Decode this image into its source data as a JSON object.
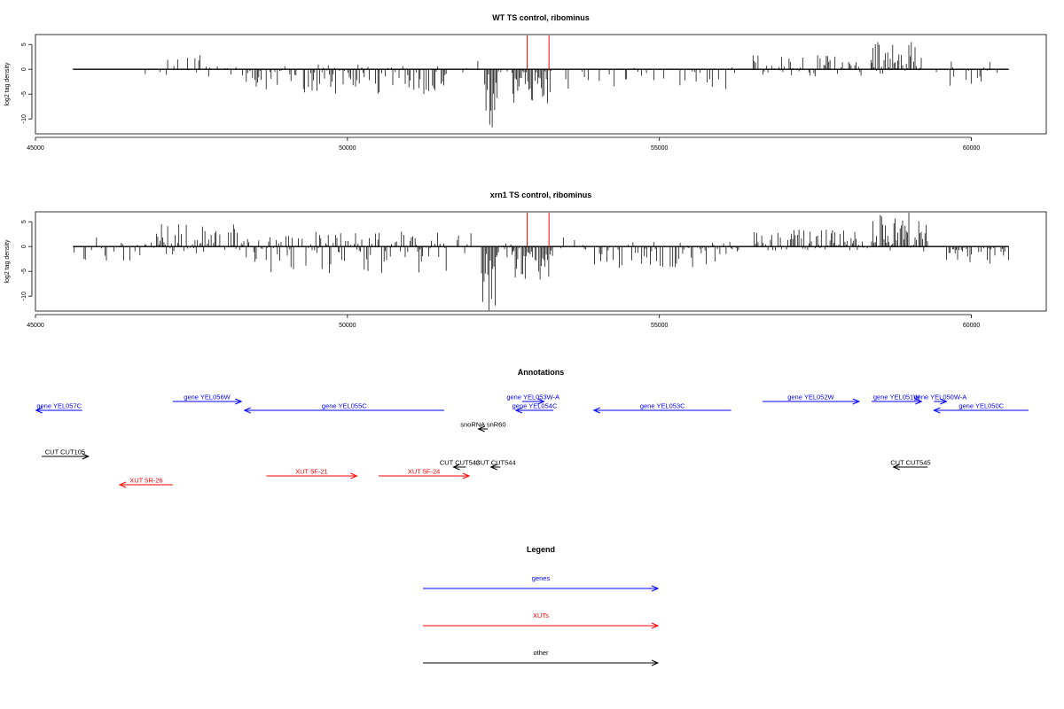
{
  "chart_data": [
    {
      "type": "bar",
      "title": "WT TS control, ribominus",
      "xlabel": "",
      "ylabel": "log2 tag density",
      "xlim": [
        45000,
        61200
      ],
      "ylim": [
        -13,
        7
      ],
      "xticks": [
        45000,
        50000,
        55000,
        60000
      ],
      "xtick_labels": [
        "45000",
        "50000",
        "55000",
        "60000"
      ],
      "yticks": [
        5,
        0,
        -5,
        -10
      ],
      "ytick_labels": [
        "5",
        "0",
        "-5",
        "-10"
      ],
      "baseline_range": [
        45600,
        60600
      ],
      "markers": [
        52880,
        53230
      ],
      "marker_color": "#ff0000",
      "regions": [
        {
          "x": [
            45620,
            45700
          ],
          "y": [
            -2.0,
            0.5
          ],
          "density": 0.2
        },
        {
          "x": [
            45820,
            45900
          ],
          "y": [
            -3.0,
            0.0
          ],
          "density": 0.2
        },
        {
          "x": [
            46700,
            46760
          ],
          "y": [
            -2.0,
            0.5
          ],
          "density": 0.3
        },
        {
          "x": [
            46900,
            48300
          ],
          "y": [
            -1.5,
            3.0
          ],
          "density": 0.35
        },
        {
          "x": [
            48300,
            51600
          ],
          "y": [
            -5.0,
            1.0
          ],
          "density": 0.6
        },
        {
          "x": [
            51850,
            51950
          ],
          "y": [
            -1.0,
            3.0
          ],
          "density": 0.3
        },
        {
          "x": [
            52050,
            52150
          ],
          "y": [
            -1.0,
            2.0
          ],
          "density": 0.3
        },
        {
          "x": [
            52200,
            52400
          ],
          "y": [
            -12.5,
            0.0
          ],
          "density": 1.0
        },
        {
          "x": [
            52400,
            52650
          ],
          "y": [
            -2.0,
            0.5
          ],
          "density": 0.4
        },
        {
          "x": [
            52650,
            53300
          ],
          "y": [
            -7.0,
            0.0
          ],
          "density": 1.0
        },
        {
          "x": [
            53500,
            56300
          ],
          "y": [
            -4.0,
            1.0
          ],
          "density": 0.25
        },
        {
          "x": [
            56500,
            58400
          ],
          "y": [
            -1.5,
            3.0
          ],
          "density": 0.55
        },
        {
          "x": [
            58400,
            59200
          ],
          "y": [
            -1.0,
            5.5
          ],
          "density": 0.95
        },
        {
          "x": [
            59400,
            60600
          ],
          "y": [
            -3.5,
            2.0
          ],
          "density": 0.4
        }
      ]
    },
    {
      "type": "bar",
      "title": "xrn1 TS control, ribominus",
      "xlabel": "",
      "ylabel": "log2 tag density",
      "xlim": [
        45000,
        61200
      ],
      "ylim": [
        -13,
        7
      ],
      "xticks": [
        45000,
        50000,
        55000,
        60000
      ],
      "xtick_labels": [
        "45000",
        "50000",
        "55000",
        "60000"
      ],
      "yticks": [
        5,
        0,
        -5,
        -10
      ],
      "ytick_labels": [
        "5",
        "0",
        "-5",
        "-10"
      ],
      "baseline_range": [
        45600,
        60600
      ],
      "markers": [
        52880,
        53230
      ],
      "marker_color": "#ff0000",
      "regions": [
        {
          "x": [
            45600,
            46900
          ],
          "y": [
            -3.0,
            2.0
          ],
          "density": 0.3
        },
        {
          "x": [
            46900,
            48300
          ],
          "y": [
            -2.0,
            4.5
          ],
          "density": 0.9
        },
        {
          "x": [
            48300,
            51600
          ],
          "y": [
            -5.5,
            3.0
          ],
          "density": 0.8
        },
        {
          "x": [
            51700,
            52100
          ],
          "y": [
            -2.0,
            3.0
          ],
          "density": 0.4
        },
        {
          "x": [
            52150,
            52400
          ],
          "y": [
            -13.0,
            0.0
          ],
          "density": 1.0
        },
        {
          "x": [
            52400,
            52650
          ],
          "y": [
            -3.0,
            1.0
          ],
          "density": 0.5
        },
        {
          "x": [
            52650,
            53300
          ],
          "y": [
            -7.0,
            0.0
          ],
          "density": 1.0
        },
        {
          "x": [
            53300,
            53800
          ],
          "y": [
            -1.0,
            2.0
          ],
          "density": 0.3
        },
        {
          "x": [
            53800,
            56300
          ],
          "y": [
            -4.5,
            1.0
          ],
          "density": 0.55
        },
        {
          "x": [
            56500,
            58400
          ],
          "y": [
            -1.0,
            3.5
          ],
          "density": 0.85
        },
        {
          "x": [
            58400,
            59300
          ],
          "y": [
            -1.0,
            7.0
          ],
          "density": 1.0
        },
        {
          "x": [
            59600,
            60600
          ],
          "y": [
            -3.5,
            0.0
          ],
          "density": 0.7
        }
      ]
    }
  ],
  "annotations": {
    "title": "Annotations",
    "features": [
      {
        "label": "gene YEL057C",
        "start": 45010,
        "end": 45750,
        "row": 1,
        "kind": "gene",
        "strand": "-"
      },
      {
        "label": "gene YEL056W",
        "start": 47200,
        "end": 48300,
        "row": 0,
        "kind": "gene",
        "strand": "+"
      },
      {
        "label": "gene YEL055C",
        "start": 48350,
        "end": 51550,
        "row": 1,
        "kind": "gene",
        "strand": "-"
      },
      {
        "label": "gene YEL053W-A",
        "start": 52800,
        "end": 53150,
        "row": 0,
        "kind": "gene",
        "strand": "+"
      },
      {
        "label": "gene YEL054C",
        "start": 52700,
        "end": 53300,
        "row": 1,
        "kind": "gene",
        "strand": "-"
      },
      {
        "label": "gene YEL053C",
        "start": 53950,
        "end": 56150,
        "row": 1,
        "kind": "gene",
        "strand": "-"
      },
      {
        "label": "gene YEL052W",
        "start": 56650,
        "end": 58200,
        "row": 0,
        "kind": "gene",
        "strand": "+"
      },
      {
        "label": "gene YEL051W",
        "start": 58400,
        "end": 59200,
        "row": 0,
        "kind": "gene",
        "strand": "+"
      },
      {
        "label": "gene YEL050W-A",
        "start": 59400,
        "end": 59600,
        "row": 0,
        "kind": "gene",
        "strand": "+"
      },
      {
        "label": "gene YEL050C",
        "start": 59400,
        "end": 61450,
        "row": 1,
        "kind": "gene",
        "strand": "-"
      },
      {
        "label": "snoRNA snR60",
        "start": 52100,
        "end": 52250,
        "row": 2,
        "kind": "other",
        "strand": "-"
      },
      {
        "label": "CUT CUT105",
        "start": 45100,
        "end": 45850,
        "row": 3,
        "kind": "other",
        "strand": "+"
      },
      {
        "label": "CUT CUT543",
        "start": 51700,
        "end": 51900,
        "row": 4,
        "kind": "other",
        "strand": "-"
      },
      {
        "label": "CUT CUT544",
        "start": 52300,
        "end": 52450,
        "row": 4,
        "kind": "other",
        "strand": "-"
      },
      {
        "label": "CUT CUT545",
        "start": 58750,
        "end": 59300,
        "row": 4,
        "kind": "other",
        "strand": "-"
      },
      {
        "label": "XUT 5F-21",
        "start": 48700,
        "end": 50150,
        "row": 5,
        "kind": "xut",
        "strand": "+"
      },
      {
        "label": "XUT 5F-24",
        "start": 50500,
        "end": 51950,
        "row": 5,
        "kind": "xut",
        "strand": "+"
      },
      {
        "label": "XUT 5R-26",
        "start": 46350,
        "end": 47200,
        "row": 6,
        "kind": "xut",
        "strand": "-"
      }
    ]
  },
  "legend": {
    "title": "Legend",
    "items": [
      {
        "label": "genes",
        "color": "#0000ff"
      },
      {
        "label": "XUTs",
        "color": "#ff0000"
      },
      {
        "label": "other",
        "color": "#000000"
      }
    ]
  },
  "colors": {
    "gene": "#0000ff",
    "xut": "#ff0000",
    "other": "#000000"
  }
}
